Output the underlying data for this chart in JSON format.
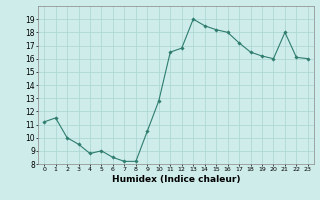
{
  "x": [
    0,
    1,
    2,
    3,
    4,
    5,
    6,
    7,
    8,
    9,
    10,
    11,
    12,
    13,
    14,
    15,
    16,
    17,
    18,
    19,
    20,
    21,
    22,
    23
  ],
  "y": [
    11.2,
    11.5,
    10.0,
    9.5,
    8.8,
    9.0,
    8.5,
    8.2,
    8.2,
    10.5,
    12.8,
    16.5,
    16.8,
    19.0,
    18.5,
    18.2,
    18.0,
    17.2,
    16.5,
    16.2,
    16.0,
    18.0,
    16.1,
    16.0
  ],
  "xlabel": "Humidex (Indice chaleur)",
  "line_color": "#2e7d6e",
  "marker": "D",
  "marker_size": 1.8,
  "bg_color": "#ceecea",
  "grid_color": "#aed8d4",
  "ylim": [
    8,
    20
  ],
  "xlim": [
    -0.5,
    23.5
  ],
  "yticks": [
    8,
    9,
    10,
    11,
    12,
    13,
    14,
    15,
    16,
    17,
    18,
    19
  ],
  "xticks": [
    0,
    1,
    2,
    3,
    4,
    5,
    6,
    7,
    8,
    9,
    10,
    11,
    12,
    13,
    14,
    15,
    16,
    17,
    18,
    19,
    20,
    21,
    22,
    23
  ]
}
